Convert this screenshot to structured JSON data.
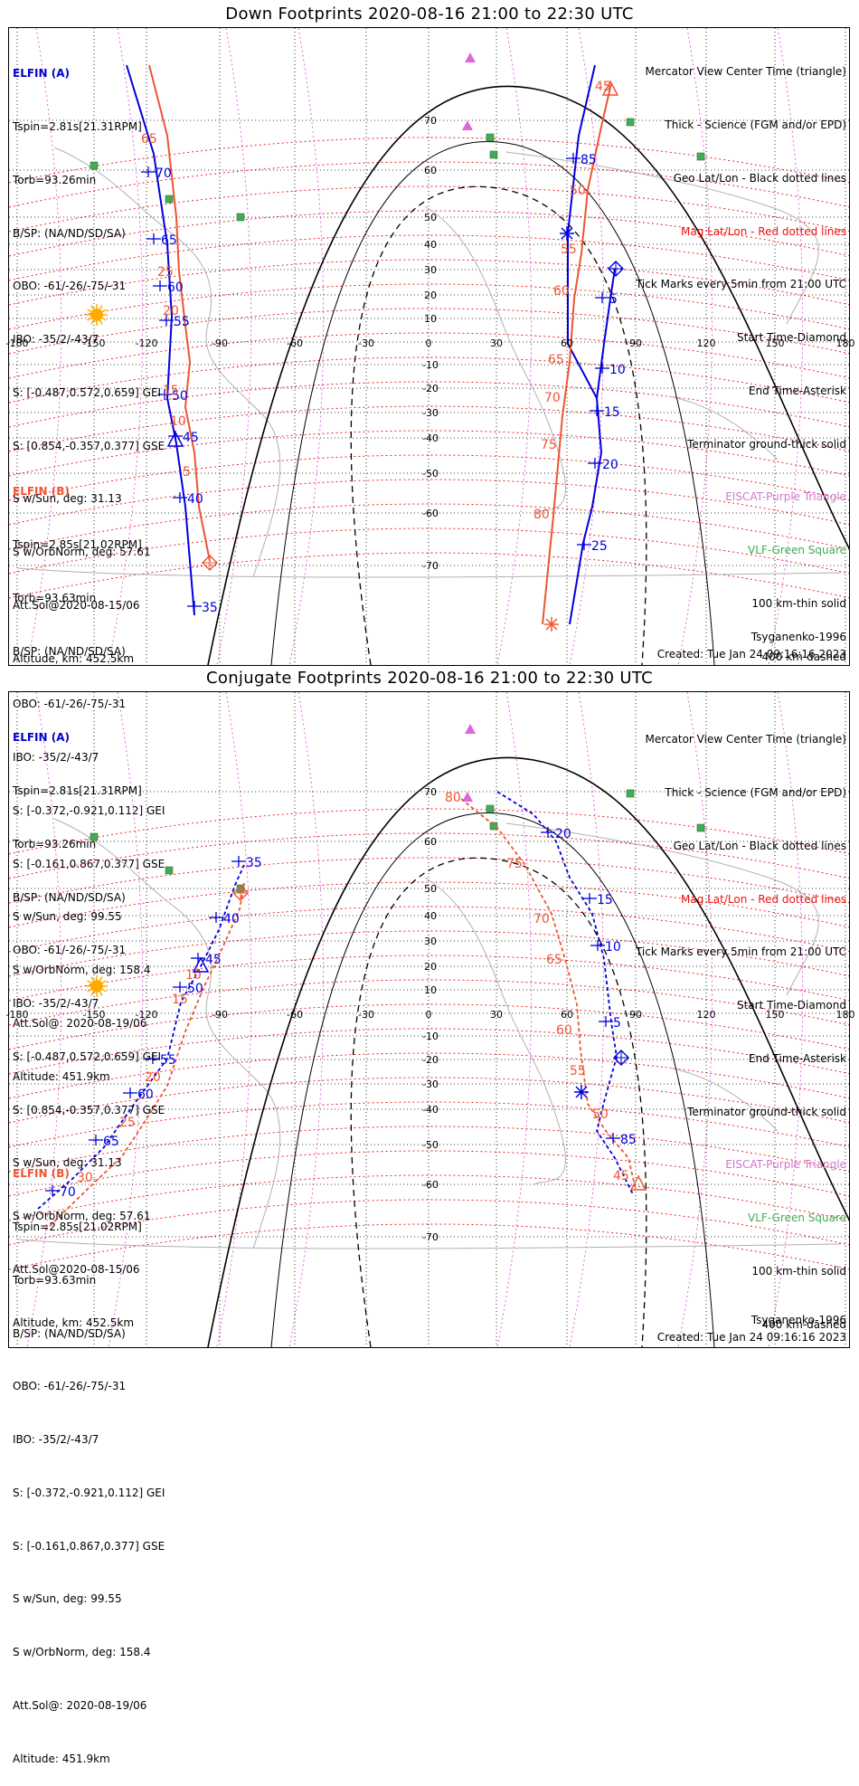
{
  "panels": {
    "top": {
      "title": "Down Footprints 2020-08-16 21:00 to 22:30 UTC",
      "lat_labels": [
        "70",
        "60",
        "50",
        "40",
        "30",
        "20",
        "10",
        "-10",
        "-20",
        "-30",
        "-40",
        "-50",
        "-60",
        "-70"
      ],
      "lon_labels": [
        "-180",
        "-150",
        "-120",
        "-90",
        "-60",
        "-30",
        "0",
        "30",
        "60",
        "90",
        "120",
        "150",
        "180"
      ],
      "elfin_a_ticks": [
        "70",
        "65",
        "60",
        "55",
        "50",
        "45",
        "40",
        "35",
        "85",
        "5",
        "10",
        "15",
        "20",
        "25"
      ],
      "elfin_b_ticks": [
        "65",
        "25",
        "20",
        "15",
        "10",
        "5",
        "45",
        "50",
        "55",
        "60",
        "65",
        "70",
        "75",
        "80"
      ]
    },
    "bottom": {
      "title": "Conjugate Footprints 2020-08-16 21:00 to 22:30 UTC",
      "lat_labels": [
        "70",
        "60",
        "50",
        "40",
        "30",
        "20",
        "10",
        "-10",
        "-20",
        "-30",
        "-40",
        "-50",
        "-60",
        "-70"
      ],
      "lon_labels": [
        "-180",
        "-150",
        "-120",
        "-90",
        "-60",
        "-30",
        "0",
        "30",
        "60",
        "90",
        "120",
        "150",
        "180"
      ],
      "elfin_a_ticks": [
        "35",
        "40",
        "45",
        "50",
        "55",
        "60",
        "65",
        "70",
        "20",
        "15",
        "10",
        "5",
        "85"
      ],
      "elfin_b_ticks": [
        "10",
        "15",
        "20",
        "25",
        "30",
        "80",
        "75",
        "70",
        "65",
        "60",
        "55",
        "50",
        "45"
      ]
    }
  },
  "elfin_a": {
    "header": "ELFIN (A)",
    "lines": [
      "Tspin=2.81s[21.31RPM]",
      "Torb=93.26min",
      "B/SP: (NA/ND/SD/SA)",
      "OBO: -61/-26/-75/-31",
      "IBO: -35/2/-43/7",
      "S: [-0.487,0.572,0.659] GEI",
      "S: [0.854,-0.357,0.377] GSE",
      "S w/Sun, deg: 31.13",
      "S w/OrbNorm, deg: 57.61",
      "Att.Sol@2020-08-15/06",
      "Altitude, km: 452.5km"
    ]
  },
  "elfin_b": {
    "header": "ELFIN (B)",
    "lines": [
      "Tspin=2.85s[21.02RPM]",
      "Torb=93.63min",
      "B/SP: (NA/ND/SD/SA)",
      "OBO: -61/-26/-75/-31",
      "IBO: -35/2/-43/7",
      "S: [-0.372,-0.921,0.112] GEI",
      "S: [-0.161,0.867,0.377] GSE",
      "S w/Sun, deg: 99.55",
      "S w/OrbNorm, deg: 158.4",
      "Att.Sol@: 2020-08-19/06",
      "Altitude: 451.9km"
    ]
  },
  "legend": {
    "view_center": "Mercator View Center Time (triangle)",
    "thick": "Thick - Science (FGM and/or EPD)",
    "geo": "Geo Lat/Lon - Black dotted lines",
    "mag": "Mag Lat/Lon - Red dotted lines",
    "ticks": "Tick Marks every 5min from 21:00 UTC",
    "start": "Start Time-Diamond",
    "end": "End Time-Asterisk",
    "terminator": "Terminator ground-thick solid",
    "eiscat": "EISCAT-Purple Triangle",
    "vlf": "VLF-Green Square",
    "km100": "100 km-thin solid",
    "km400": "400 km-dashed"
  },
  "footer": {
    "model": "Tsyganenko-1996",
    "created": "Created: Tue Jan 24 09:16:16 2023"
  },
  "colors": {
    "elfin_a": "#0000dd",
    "elfin_b": "#ee5533",
    "mag_grid": "#ee1111",
    "geo_grid": "#000000",
    "meridian": "#dd44dd",
    "eiscat": "#dd66dd",
    "vlf": "#44aa55",
    "sun": "#ffaa00",
    "coast": "#b0b0b0"
  }
}
